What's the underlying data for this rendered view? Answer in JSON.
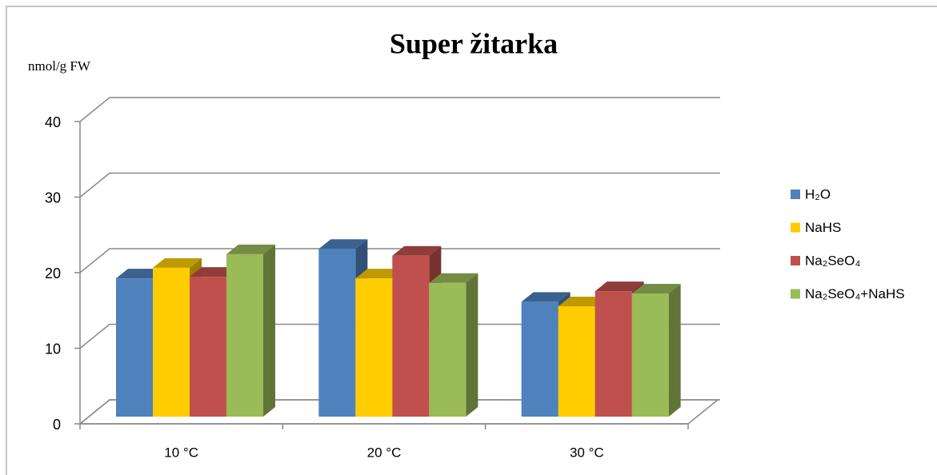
{
  "chart_data": {
    "type": "bar3d",
    "title": "Super žitarka",
    "y_label": "nmol/g FW",
    "categories": [
      "10 °C",
      "20 °C",
      "30 °C"
    ],
    "series": [
      {
        "name": "H₂O",
        "color": "#4f81bd",
        "values": [
          18.3,
          22.2,
          15.2
        ]
      },
      {
        "name": "NaHS",
        "color": "#ffcc00",
        "values": [
          19.7,
          18.3,
          14.6
        ]
      },
      {
        "name": "Na₂SeO₄",
        "color": "#c0504d",
        "values": [
          18.5,
          21.3,
          16.6
        ]
      },
      {
        "name": "Na₂SeO₄+NaHS",
        "color": "#9bbb59",
        "values": [
          21.5,
          17.7,
          16.3
        ]
      }
    ],
    "ylim": [
      0,
      40
    ],
    "yticks": [
      0,
      10,
      20,
      30,
      40
    ],
    "grid": true,
    "legend": "right"
  }
}
